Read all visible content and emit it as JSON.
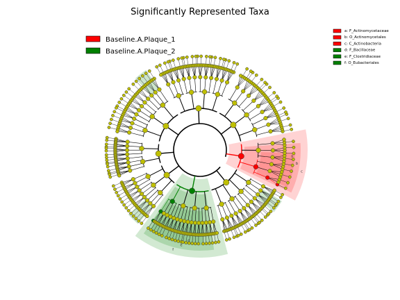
{
  "chart_data": {
    "type": "cladogram",
    "title": "Significantly Represented Taxa",
    "groups": [
      {
        "name": "Baseline.A.Plaque_1",
        "color": "#ff0000",
        "shade": "#ff8080"
      },
      {
        "name": "Baseline.A.Plaque_2",
        "color": "#008000",
        "shade": "#7fbf7f"
      }
    ],
    "neutral_color": "#bfbf00",
    "highlighted_clades": [
      {
        "letter": "a",
        "name": "F_Actinomycetaceae",
        "group": "Baseline.A.Plaque_1",
        "label": "a: F_Actinomycetaceae"
      },
      {
        "letter": "b",
        "name": "O_Actinomycetales",
        "group": "Baseline.A.Plaque_1",
        "label": "b: O_Actinomycetales"
      },
      {
        "letter": "c",
        "name": "C_Actinobacteria",
        "group": "Baseline.A.Plaque_1",
        "label": "c: C_Actinobacteria"
      },
      {
        "letter": "d",
        "name": "F_Bacillaceae",
        "group": "Baseline.A.Plaque_2",
        "label": "d: F_Bacillaceae"
      },
      {
        "letter": "e",
        "name": "F_Clostridiaceae",
        "group": "Baseline.A.Plaque_2",
        "label": "e: F_Clostridiaceae"
      },
      {
        "letter": "f",
        "name": "O_Eubacteriales",
        "group": "Baseline.A.Plaque_2",
        "label": "f: O_Eubacteriales"
      }
    ],
    "legend_position": "top-left",
    "clade_legend_position": "top-right"
  }
}
